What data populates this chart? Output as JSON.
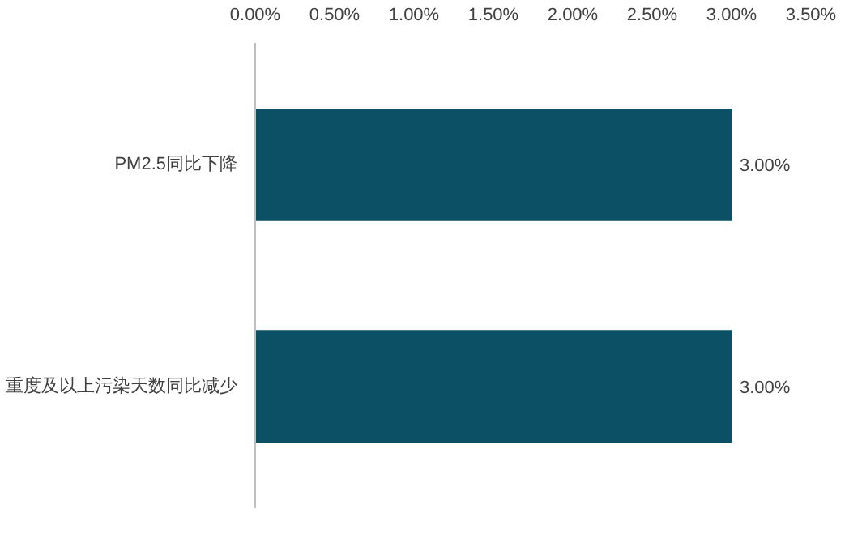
{
  "chart_data": {
    "type": "bar",
    "orientation": "horizontal",
    "categories": [
      "PM2.5同比下降",
      "重度及以上污染天数同比减少"
    ],
    "values": [
      3,
      3
    ],
    "color": "#0b5064",
    "value_labels": [
      "3.00%",
      "3.00%"
    ],
    "xlim": [
      0,
      3.5
    ],
    "xticks": [
      {
        "value": 0,
        "label": "0.00%"
      },
      {
        "value": 0.5,
        "label": "0.50%"
      },
      {
        "value": 1,
        "label": "1.00%"
      },
      {
        "value": 1.5,
        "label": "1.50%"
      },
      {
        "value": 2,
        "label": "2.00%"
      },
      {
        "value": 2.5,
        "label": "2.50%"
      },
      {
        "value": 3,
        "label": "3.00%"
      },
      {
        "value": 3.5,
        "label": "3.50%"
      }
    ],
    "grid": false
  }
}
